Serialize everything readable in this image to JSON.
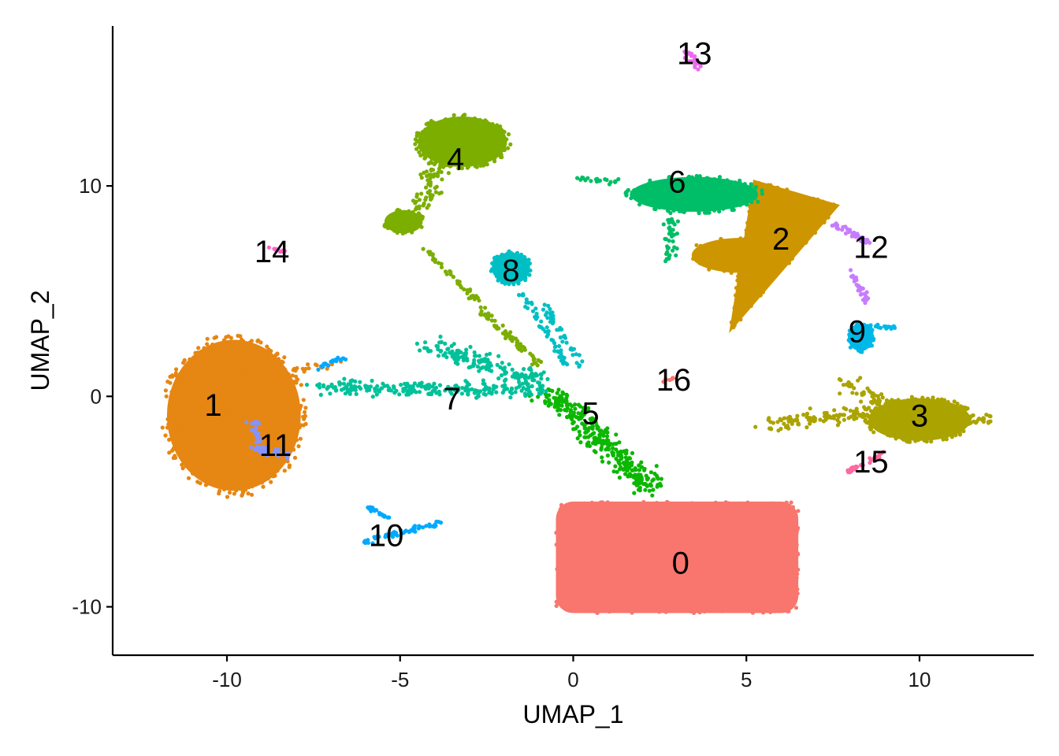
{
  "chart_data": {
    "type": "scatter",
    "title": "",
    "xlabel": "UMAP_1",
    "ylabel": "UMAP_2",
    "xlim": [
      -13.3,
      13.3
    ],
    "ylim": [
      -12.3,
      17.6
    ],
    "x_ticks": [
      -10,
      -5,
      0,
      5,
      10
    ],
    "y_ticks": [
      -10,
      0,
      10
    ],
    "x_tick_labels": [
      "-10",
      "-5",
      "0",
      "5",
      "10"
    ],
    "y_tick_labels": [
      "-10",
      "0",
      "10"
    ],
    "grid": false,
    "legend": "none",
    "clusters": [
      {
        "label": "0",
        "color": "#F8766D",
        "label_pos": [
          3.1,
          -7.9
        ]
      },
      {
        "label": "1",
        "color": "#E68613",
        "label_pos": [
          -10.4,
          -0.4
        ]
      },
      {
        "label": "2",
        "color": "#CD9600",
        "label_pos": [
          6.0,
          7.5
        ]
      },
      {
        "label": "3",
        "color": "#ABA300",
        "label_pos": [
          10.0,
          -0.9
        ]
      },
      {
        "label": "4",
        "color": "#7CAE00",
        "label_pos": [
          -3.4,
          11.3
        ]
      },
      {
        "label": "5",
        "color": "#0CB702",
        "label_pos": [
          0.5,
          -0.8
        ]
      },
      {
        "label": "6",
        "color": "#00BE67",
        "label_pos": [
          3.0,
          10.2
        ]
      },
      {
        "label": "7",
        "color": "#00C19A",
        "label_pos": [
          -3.5,
          -0.1
        ]
      },
      {
        "label": "8",
        "color": "#00BFC4",
        "label_pos": [
          -1.8,
          6.0
        ]
      },
      {
        "label": "9",
        "color": "#00B8E7",
        "label_pos": [
          8.2,
          3.1
        ]
      },
      {
        "label": "10",
        "color": "#00A9FF",
        "label_pos": [
          -5.4,
          -6.6
        ]
      },
      {
        "label": "11",
        "color": "#8494FF",
        "label_pos": [
          -8.6,
          -2.3
        ]
      },
      {
        "label": "12",
        "color": "#C77CFF",
        "label_pos": [
          8.6,
          7.1
        ]
      },
      {
        "label": "13",
        "color": "#ED68ED",
        "label_pos": [
          3.5,
          16.3
        ]
      },
      {
        "label": "14",
        "color": "#FF61CC",
        "label_pos": [
          -8.7,
          6.9
        ]
      },
      {
        "label": "15",
        "color": "#FF68A1",
        "label_pos": [
          8.6,
          -3.1
        ]
      },
      {
        "label": "16",
        "color": "#F8766D",
        "label_pos": [
          2.9,
          0.8
        ]
      }
    ]
  }
}
